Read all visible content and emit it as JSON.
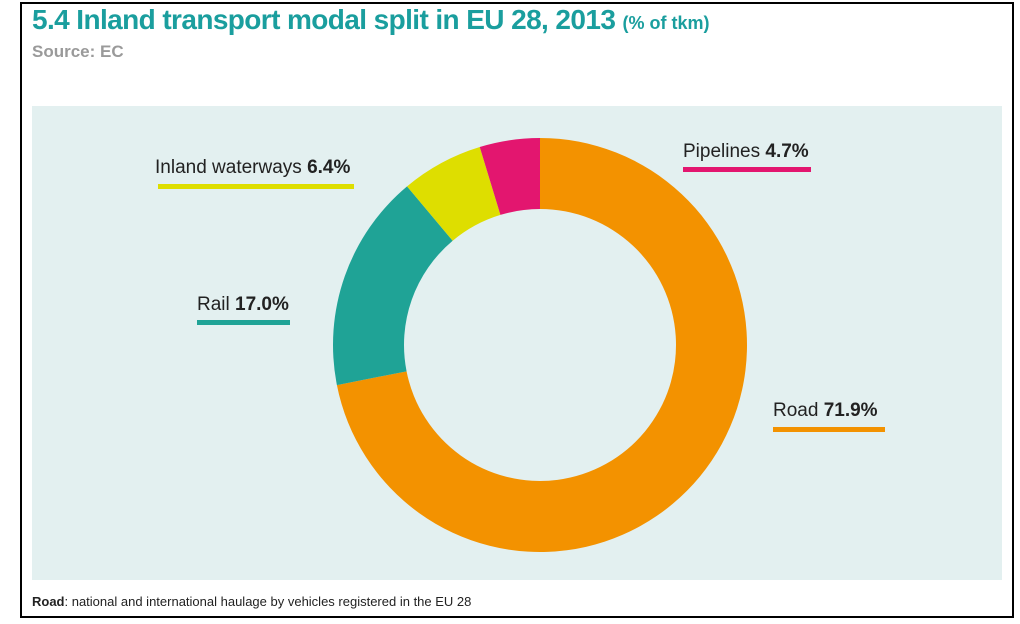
{
  "header": {
    "title_main": "5.4 Inland transport modal split in EU 28, 2013",
    "title_unit": "(% of tkm)",
    "source": "Source: EC"
  },
  "chart_data": {
    "type": "pie",
    "donut": true,
    "unit": "% of tkm",
    "slices": [
      {
        "name": "Road",
        "value": 71.9,
        "display": "71.9%",
        "color": "#f39200"
      },
      {
        "name": "Rail",
        "value": 17.0,
        "display": "17.0%",
        "color": "#1fa396"
      },
      {
        "name": "Inland waterways",
        "value": 6.4,
        "display": "6.4%",
        "color": "#dede00"
      },
      {
        "name": "Pipelines",
        "value": 4.7,
        "display": "4.7%",
        "color": "#e3166f"
      }
    ],
    "background": "#e3f0f0"
  },
  "footnote": {
    "term": "Road",
    "text": ": national and international haulage by vehicles registered in the EU 28"
  }
}
